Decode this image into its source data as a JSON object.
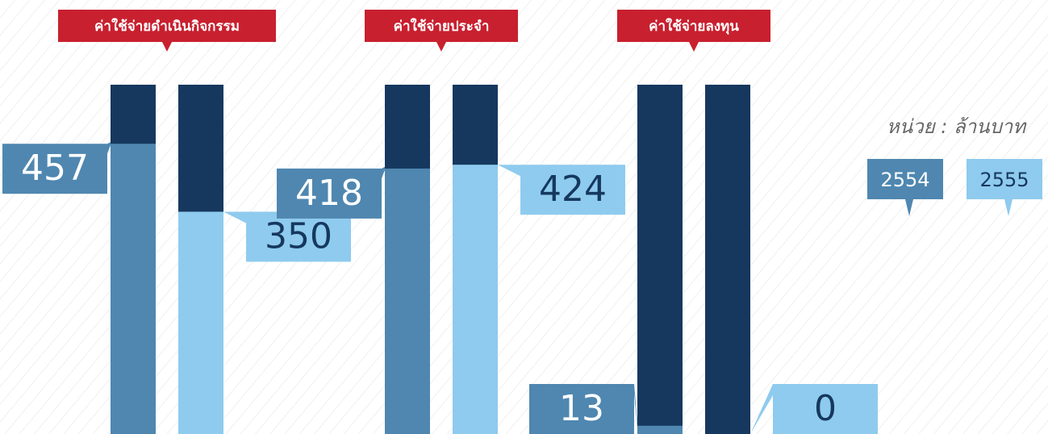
{
  "chart_data": {
    "type": "bar",
    "subtitle": "หน่วย : ล้านบาท",
    "categories": [
      "ค่าใช้จ่ายดำเนินกิจกรรม",
      "ค่าใช้จ่ายประจำ",
      "ค่าใช้จ่ายลงทุน"
    ],
    "series": [
      {
        "name": "2554",
        "color": "#4f87b0",
        "values": [
          457,
          418,
          13
        ]
      },
      {
        "name": "2555",
        "color": "#8ecbee",
        "values": [
          350,
          424,
          0
        ]
      }
    ],
    "ylim": [
      0,
      550
    ]
  }
}
